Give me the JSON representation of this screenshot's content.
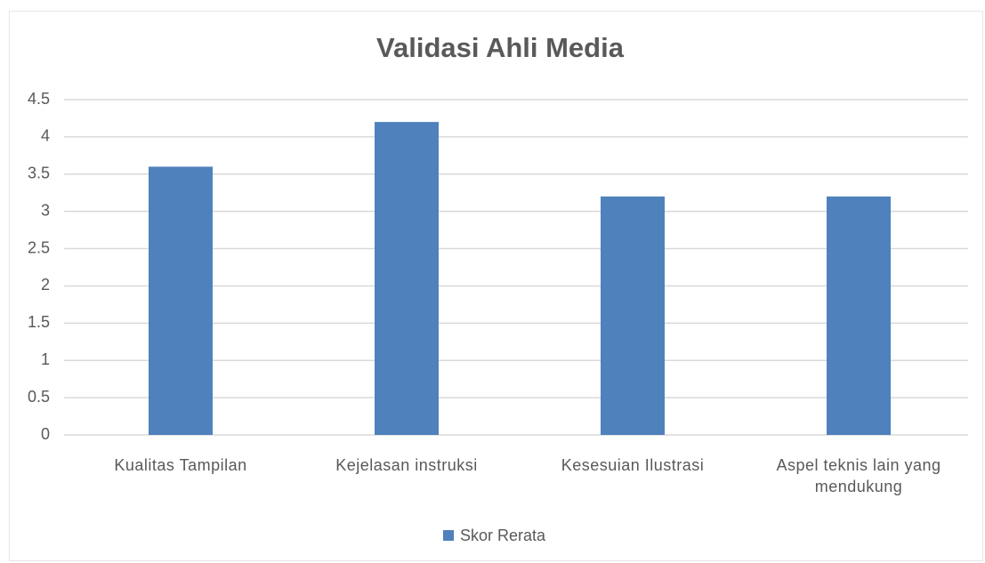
{
  "chart_data": {
    "type": "bar",
    "title": "Validasi Ahli Media",
    "categories": [
      "Kualitas Tampilan",
      "Kejelasan instruksi",
      "Kesesuian Ilustrasi",
      "Aspel teknis lain yang mendukung"
    ],
    "series": [
      {
        "name": "Skor Rerata",
        "color": "#4f81bd",
        "values": [
          3.6,
          4.2,
          3.2,
          3.2
        ]
      }
    ],
    "ylim": [
      0,
      4.5
    ],
    "yticks": [
      0,
      0.5,
      1,
      1.5,
      2,
      2.5,
      3,
      3.5,
      4,
      4.5
    ],
    "grid": true,
    "legend": "bottom"
  }
}
